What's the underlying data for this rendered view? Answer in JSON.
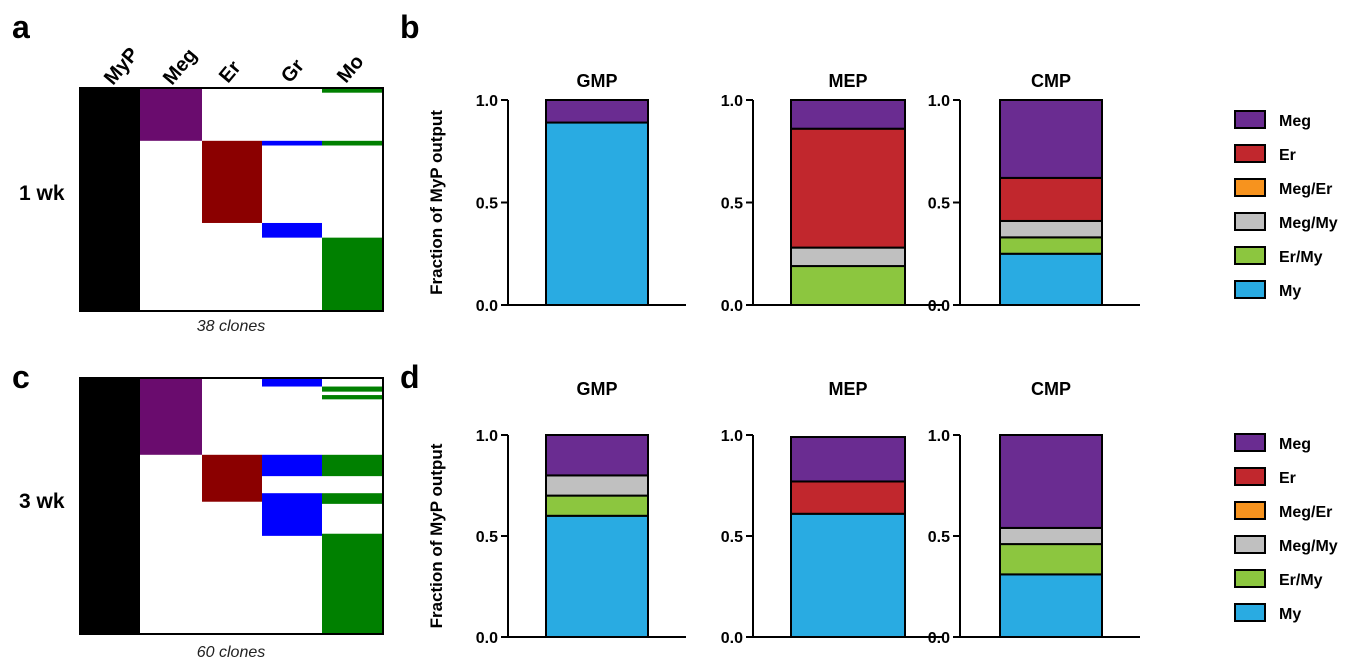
{
  "panel_labels": {
    "a": "a",
    "b": "b",
    "c": "c",
    "d": "d"
  },
  "heatmaps": [
    {
      "row_label": "1 wk",
      "clones_label": "38 clones",
      "columns": [
        "MyP",
        "Meg",
        "Er",
        "Gr",
        "Mo"
      ],
      "colors": {
        "MyP": "#000000",
        "Meg": "#6a0c6e",
        "Er": "#8b0000",
        "Gr": "#0000ff",
        "Mo": "#008000"
      },
      "total_clones": 38,
      "cells": [
        {
          "col": "MyP",
          "start": 0,
          "end": 38
        },
        {
          "col": "Meg",
          "start": 0,
          "end": 9
        },
        {
          "col": "Mo",
          "start": 0,
          "end": 0.8
        },
        {
          "col": "Gr",
          "start": 9,
          "end": 9.8
        },
        {
          "col": "Mo",
          "start": 9,
          "end": 9.8
        },
        {
          "col": "Er",
          "start": 9,
          "end": 23
        },
        {
          "col": "Gr",
          "start": 23,
          "end": 25.5
        },
        {
          "col": "Mo",
          "start": 25.5,
          "end": 38
        }
      ]
    },
    {
      "row_label": "3 wk",
      "clones_label": "60 clones",
      "columns": [
        "MyP",
        "Meg",
        "Er",
        "Gr",
        "Mo"
      ],
      "colors": {
        "MyP": "#000000",
        "Meg": "#6a0c6e",
        "Er": "#8b0000",
        "Gr": "#0000ff",
        "Mo": "#008000"
      },
      "total_clones": 60,
      "cells": [
        {
          "col": "MyP",
          "start": 0,
          "end": 60
        },
        {
          "col": "Gr",
          "start": 0,
          "end": 2
        },
        {
          "col": "Mo",
          "start": 2,
          "end": 3.2
        },
        {
          "col": "Mo",
          "start": 4,
          "end": 5
        },
        {
          "col": "Meg",
          "start": 0,
          "end": 18
        },
        {
          "col": "Er",
          "start": 18,
          "end": 29
        },
        {
          "col": "Gr",
          "start": 18,
          "end": 23
        },
        {
          "col": "Mo",
          "start": 18,
          "end": 23
        },
        {
          "col": "Gr",
          "start": 27,
          "end": 37
        },
        {
          "col": "Mo",
          "start": 27,
          "end": 29.5
        },
        {
          "col": "Mo",
          "start": 36.5,
          "end": 60
        }
      ]
    }
  ],
  "legend": {
    "items": [
      {
        "name": "Meg",
        "color": "#6a2c91"
      },
      {
        "name": "Er",
        "color": "#c1272d"
      },
      {
        "name": "Meg/Er",
        "color": "#f7931e"
      },
      {
        "name": "Meg/My",
        "color": "#c0c0c0"
      },
      {
        "name": "Er/My",
        "color": "#8cc63f"
      },
      {
        "name": "My",
        "color": "#29abe2"
      }
    ]
  },
  "chart_data": [
    {
      "type": "bar",
      "stacked": true,
      "ylabel": "Fraction of MyP output",
      "ylim": [
        0,
        1.0
      ],
      "yticks": [
        "0.0",
        "0.5",
        "1.0"
      ],
      "categories": [
        "GMP",
        "MEP",
        "CMP"
      ],
      "series": [
        {
          "name": "My",
          "values": [
            0.89,
            0.0,
            0.25
          ]
        },
        {
          "name": "Er/My",
          "values": [
            0.0,
            0.19,
            0.08
          ]
        },
        {
          "name": "Meg/My",
          "values": [
            0.0,
            0.09,
            0.08
          ]
        },
        {
          "name": "Meg/Er",
          "values": [
            0.0,
            0.0,
            0.0
          ]
        },
        {
          "name": "Er",
          "values": [
            0.0,
            0.58,
            0.21
          ]
        },
        {
          "name": "Meg",
          "values": [
            0.11,
            0.14,
            0.38
          ]
        }
      ]
    },
    {
      "type": "bar",
      "stacked": true,
      "ylabel": "Fraction of MyP output",
      "ylim": [
        0,
        1.0
      ],
      "yticks": [
        "0.0",
        "0.5",
        "1.0"
      ],
      "categories": [
        "GMP",
        "MEP",
        "CMP"
      ],
      "series": [
        {
          "name": "My",
          "values": [
            0.6,
            0.61,
            0.31
          ]
        },
        {
          "name": "Er/My",
          "values": [
            0.1,
            0.0,
            0.15
          ]
        },
        {
          "name": "Meg/My",
          "values": [
            0.1,
            0.0,
            0.08
          ]
        },
        {
          "name": "Meg/Er",
          "values": [
            0.0,
            0.0,
            0.0
          ]
        },
        {
          "name": "Er",
          "values": [
            0.0,
            0.16,
            0.0
          ]
        },
        {
          "name": "Meg",
          "values": [
            0.2,
            0.22,
            0.46
          ]
        }
      ]
    }
  ]
}
